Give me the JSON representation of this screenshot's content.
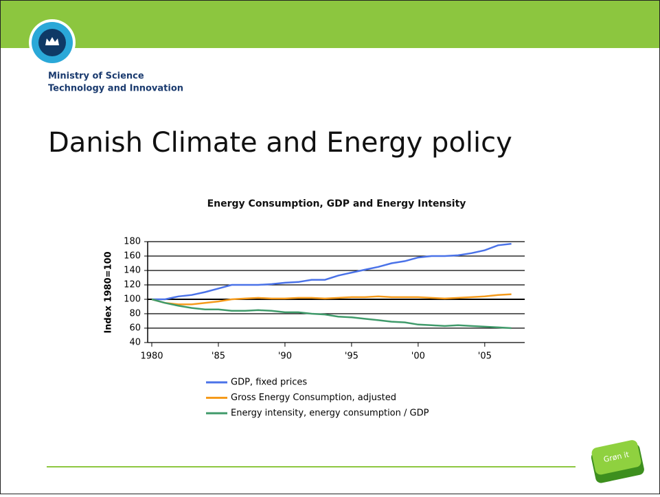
{
  "header": {
    "org_line1": "Ministry of Science",
    "org_line2": "Technology and Innovation",
    "title": "Danish Climate and Energy policy",
    "badge_text": "Grøn it"
  },
  "chart_data": {
    "type": "line",
    "title": "Energy Consumption, GDP and Energy Intensity",
    "y_label": "Index 1980=100",
    "x": [
      1980,
      1981,
      1982,
      1983,
      1984,
      1985,
      1986,
      1987,
      1988,
      1989,
      1990,
      1991,
      1992,
      1993,
      1994,
      1995,
      1996,
      1997,
      1998,
      1999,
      2000,
      2001,
      2002,
      2003,
      2004,
      2005,
      2006,
      2007
    ],
    "series": [
      {
        "name": "GDP, fixed prices",
        "color": "#4a72e8",
        "values": [
          100,
          100,
          104,
          106,
          110,
          115,
          120,
          120,
          120,
          121,
          123,
          124,
          127,
          127,
          133,
          137,
          141,
          145,
          150,
          153,
          158,
          160,
          160,
          161,
          164,
          168,
          175,
          177
        ]
      },
      {
        "name": "Gross Energy Consumption, adjusted",
        "color": "#f59a1b",
        "values": [
          100,
          95,
          93,
          93,
          95,
          97,
          100,
          101,
          102,
          101,
          101,
          102,
          102,
          101,
          102,
          103,
          103,
          104,
          103,
          103,
          103,
          102,
          101,
          102,
          103,
          104,
          106,
          107
        ]
      },
      {
        "name": "Energy intensity, energy consumption / GDP",
        "color": "#3f9a6a",
        "values": [
          100,
          95,
          91,
          88,
          86,
          86,
          84,
          84,
          85,
          84,
          82,
          82,
          80,
          79,
          76,
          75,
          73,
          71,
          69,
          68,
          65,
          64,
          63,
          64,
          63,
          62,
          61,
          60
        ]
      }
    ],
    "xlim": [
      1980,
      2008
    ],
    "ylim": [
      40,
      180
    ],
    "xticks": [
      1980,
      {
        "value": 1985,
        "label": "'85"
      },
      {
        "value": 1990,
        "label": "'90"
      },
      {
        "value": 1995,
        "label": "'95"
      },
      {
        "value": 2000,
        "label": "'00"
      },
      {
        "value": 2005,
        "label": "'05"
      }
    ],
    "yticks": [
      40,
      60,
      80,
      100,
      120,
      140,
      160,
      180
    ],
    "grid": true
  }
}
